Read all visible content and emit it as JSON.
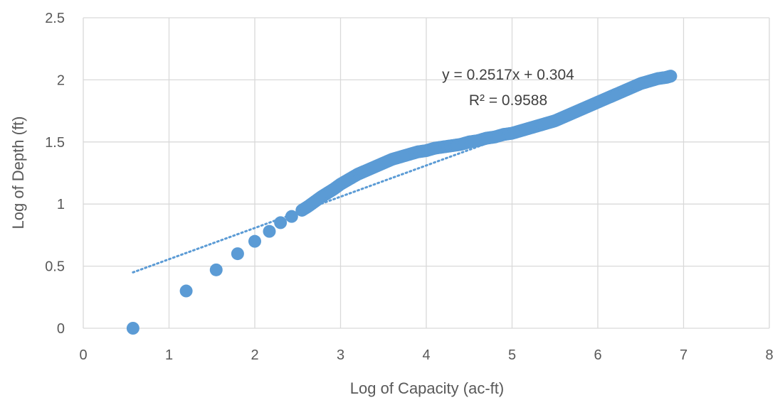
{
  "chart_data": {
    "type": "scatter",
    "title": "",
    "xlabel": "Log of Capacity (ac-ft)",
    "ylabel": "Log of Depth (ft)",
    "xlim": [
      0,
      8
    ],
    "ylim": [
      0,
      2.5
    ],
    "xticks": [
      "0",
      "1",
      "2",
      "3",
      "4",
      "5",
      "6",
      "7",
      "8"
    ],
    "yticks": [
      "0",
      "0.5",
      "1",
      "1.5",
      "2",
      "2.5"
    ],
    "grid": true,
    "legend": "none",
    "colors": {
      "points": "#5b9bd5",
      "trendline": "#5b9bd5",
      "grid": "#d9d9d9",
      "text": "#595959"
    },
    "series": [
      {
        "points": [
          [
            0.58,
            0.0
          ],
          [
            1.2,
            0.3
          ],
          [
            1.55,
            0.47
          ],
          [
            1.8,
            0.6
          ],
          [
            2.0,
            0.7
          ],
          [
            2.17,
            0.78
          ],
          [
            2.3,
            0.85
          ],
          [
            2.43,
            0.9
          ],
          [
            2.55,
            0.95
          ],
          [
            2.62,
            0.98
          ],
          [
            2.7,
            1.02
          ],
          [
            2.78,
            1.06
          ],
          [
            2.85,
            1.09
          ],
          [
            2.92,
            1.12
          ],
          [
            3.0,
            1.16
          ],
          [
            3.1,
            1.2
          ],
          [
            3.2,
            1.24
          ],
          [
            3.3,
            1.27
          ],
          [
            3.4,
            1.3
          ],
          [
            3.5,
            1.33
          ],
          [
            3.6,
            1.36
          ],
          [
            3.7,
            1.38
          ],
          [
            3.8,
            1.4
          ],
          [
            3.9,
            1.42
          ],
          [
            4.0,
            1.43
          ],
          [
            4.1,
            1.45
          ],
          [
            4.2,
            1.46
          ],
          [
            4.3,
            1.47
          ],
          [
            4.4,
            1.48
          ],
          [
            4.5,
            1.5
          ],
          [
            4.6,
            1.51
          ],
          [
            4.7,
            1.53
          ],
          [
            4.8,
            1.54
          ],
          [
            4.9,
            1.56
          ],
          [
            5.0,
            1.57
          ],
          [
            5.1,
            1.59
          ],
          [
            5.2,
            1.61
          ],
          [
            5.3,
            1.63
          ],
          [
            5.4,
            1.65
          ],
          [
            5.5,
            1.67
          ],
          [
            5.6,
            1.7
          ],
          [
            5.7,
            1.73
          ],
          [
            5.8,
            1.76
          ],
          [
            5.9,
            1.79
          ],
          [
            6.0,
            1.82
          ],
          [
            6.1,
            1.85
          ],
          [
            6.2,
            1.88
          ],
          [
            6.3,
            1.91
          ],
          [
            6.4,
            1.94
          ],
          [
            6.5,
            1.97
          ],
          [
            6.6,
            1.99
          ],
          [
            6.7,
            2.01
          ],
          [
            6.8,
            2.02
          ],
          [
            6.85,
            2.03
          ]
        ]
      }
    ],
    "trendline": {
      "type": "linear",
      "slope": 0.2517,
      "intercept": 0.304,
      "x_range": [
        0.58,
        4.7
      ],
      "equation": "y = 0.2517x + 0.304",
      "r_squared": "R² = 0.9588"
    }
  }
}
